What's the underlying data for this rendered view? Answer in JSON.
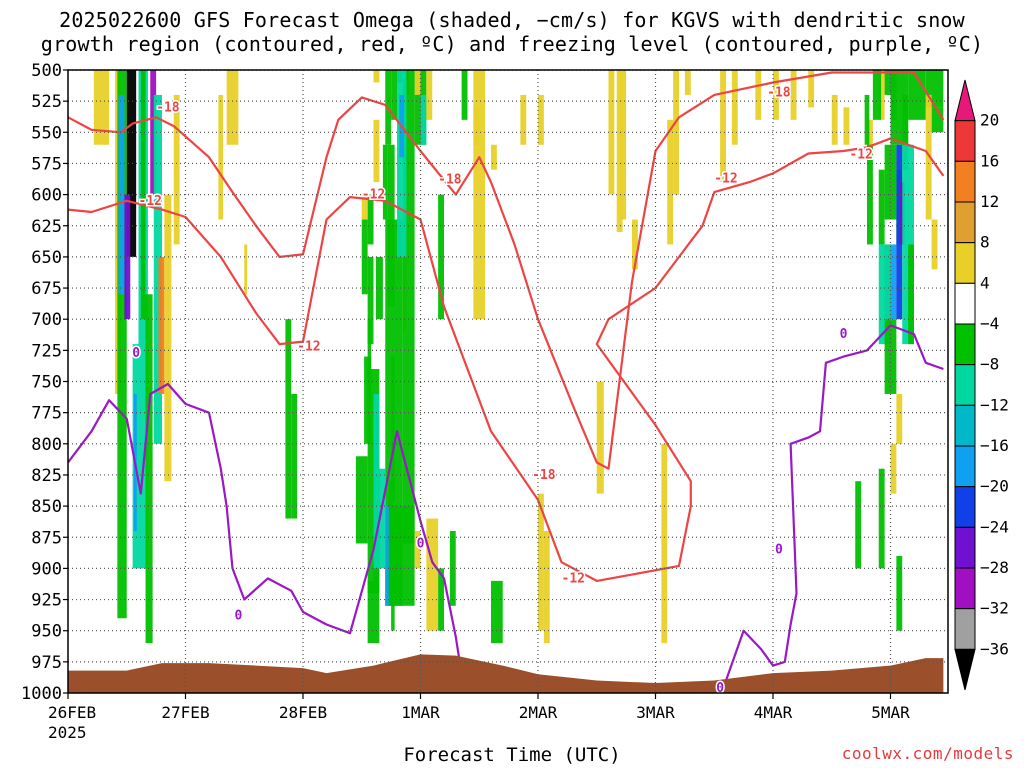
{
  "chart_data": {
    "type": "contour-cross-section",
    "title_line1": "2025022600 GFS Forecast Omega (shaded, −cm/s) for KGVS with dendritic snow",
    "title_line2": "growth region (contoured, red, ºC) and freezing level (contoured, purple, ºC)",
    "xlabel": "Forecast Time (UTC)",
    "credit": "coolwx.com/models",
    "y_ticks": [
      "500",
      "525",
      "550",
      "575",
      "600",
      "625",
      "650",
      "675",
      "700",
      "725",
      "750",
      "775",
      "800",
      "825",
      "850",
      "875",
      "900",
      "925",
      "950",
      "975",
      "1000"
    ],
    "y_range_hpa": [
      500,
      1000
    ],
    "y_inverted": true,
    "x_ticks": [
      "26FEB",
      "27FEB",
      "28FEB",
      "1MAR",
      "2MAR",
      "3MAR",
      "4MAR",
      "5MAR"
    ],
    "x_first_tick_year": "2025",
    "x_range_days": [
      0,
      7.45
    ],
    "grid": "dotted",
    "colorbar": {
      "ticks": [
        "20",
        "16",
        "12",
        "8",
        "4",
        "−4",
        "−8",
        "−12",
        "−16",
        "−20",
        "−24",
        "−28",
        "−32",
        "−36"
      ],
      "colors": [
        "#e6187a",
        "#ee3737",
        "#f08020",
        "#e0a030",
        "#e8d028",
        "#ffffff",
        "#00c000",
        "#00d8a0",
        "#00b8c8",
        "#10a0f0",
        "#1040e8",
        "#7010d0",
        "#a010c0",
        "#a0a0a0",
        "#000000"
      ]
    },
    "red_contour_labels": [
      "-18",
      "-12"
    ],
    "purple_contour_labels": [
      "0"
    ],
    "red_contour_color": "#ee4444",
    "purple_contour_color": "#9a18c8",
    "ground_color": "#9b4f2a",
    "contours": {
      "red_m18_upper": [
        [
          0,
          538
        ],
        [
          0.2,
          548
        ],
        [
          0.45,
          550
        ],
        [
          0.55,
          543
        ],
        [
          0.75,
          538
        ],
        [
          0.9,
          545
        ],
        [
          1.2,
          570
        ],
        [
          1.4,
          598
        ],
        [
          1.6,
          625
        ],
        [
          1.8,
          650
        ],
        [
          2.0,
          648
        ],
        [
          2.2,
          570
        ],
        [
          2.3,
          540
        ],
        [
          2.5,
          522
        ],
        [
          2.7,
          528
        ],
        [
          3.0,
          565
        ],
        [
          3.3,
          600
        ],
        [
          3.5,
          570
        ],
        [
          3.6,
          590
        ],
        [
          3.8,
          640
        ],
        [
          4.0,
          700
        ],
        [
          4.3,
          770
        ],
        [
          4.5,
          815
        ],
        [
          4.6,
          820
        ],
        [
          4.8,
          670
        ],
        [
          5.0,
          565
        ],
        [
          5.2,
          538
        ],
        [
          5.5,
          520
        ],
        [
          6.0,
          510
        ],
        [
          6.5,
          502
        ],
        [
          7.2,
          502
        ],
        [
          7.45,
          540
        ]
      ],
      "red_m12": [
        [
          0,
          612
        ],
        [
          0.2,
          614
        ],
        [
          0.5,
          605
        ],
        [
          0.8,
          612
        ],
        [
          1.0,
          618
        ],
        [
          1.3,
          650
        ],
        [
          1.6,
          695
        ],
        [
          1.8,
          720
        ],
        [
          2.0,
          718
        ],
        [
          2.2,
          620
        ],
        [
          2.4,
          602
        ],
        [
          2.7,
          605
        ],
        [
          3.0,
          620
        ],
        [
          3.2,
          690
        ],
        [
          3.4,
          740
        ],
        [
          3.6,
          790
        ],
        [
          4.0,
          845
        ],
        [
          4.2,
          895
        ],
        [
          4.5,
          910
        ],
        [
          4.8,
          905
        ],
        [
          5.2,
          898
        ],
        [
          5.3,
          850
        ],
        [
          5.3,
          830
        ],
        [
          5.0,
          785
        ],
        [
          4.5,
          720
        ],
        [
          4.6,
          700
        ],
        [
          5.0,
          675
        ],
        [
          5.4,
          625
        ],
        [
          5.5,
          598
        ],
        [
          5.8,
          590
        ],
        [
          6.0,
          583
        ],
        [
          6.3,
          567
        ],
        [
          6.6,
          565
        ],
        [
          6.8,
          562
        ],
        [
          7.0,
          555
        ],
        [
          7.3,
          565
        ],
        [
          7.45,
          585
        ]
      ],
      "purple_0": [
        [
          0,
          815
        ],
        [
          0.2,
          790
        ],
        [
          0.35,
          765
        ],
        [
          0.5,
          780
        ],
        [
          0.62,
          840
        ],
        [
          0.7,
          760
        ],
        [
          0.85,
          752
        ],
        [
          1.0,
          768
        ],
        [
          1.2,
          775
        ],
        [
          1.3,
          820
        ],
        [
          1.35,
          850
        ],
        [
          1.4,
          900
        ],
        [
          1.5,
          925
        ],
        [
          1.7,
          908
        ],
        [
          1.9,
          918
        ],
        [
          2.0,
          935
        ],
        [
          2.2,
          945
        ],
        [
          2.4,
          952
        ],
        [
          2.6,
          885
        ],
        [
          2.8,
          790
        ],
        [
          3.0,
          862
        ],
        [
          3.1,
          895
        ],
        [
          3.2,
          908
        ],
        [
          3.3,
          955
        ],
        [
          3.35,
          985
        ]
      ],
      "purple_0_right": [
        [
          5.3,
          1000
        ],
        [
          5.6,
          990
        ],
        [
          5.75,
          950
        ],
        [
          5.9,
          965
        ],
        [
          6.0,
          978
        ],
        [
          6.1,
          975
        ],
        [
          6.15,
          945
        ],
        [
          6.2,
          920
        ],
        [
          6.15,
          800
        ],
        [
          6.3,
          795
        ],
        [
          6.4,
          790
        ],
        [
          6.45,
          735
        ],
        [
          6.6,
          730
        ],
        [
          6.8,
          725
        ],
        [
          7.0,
          705
        ],
        [
          7.2,
          712
        ],
        [
          7.3,
          735
        ],
        [
          7.45,
          740
        ]
      ]
    }
  }
}
